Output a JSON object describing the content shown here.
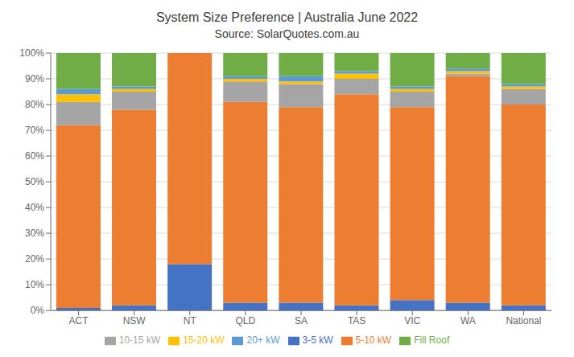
{
  "chart_data": {
    "type": "bar",
    "title": "System Size Preference  |  Australia June 2022",
    "subtitle": "Source: SolarQuotes.com.au",
    "categories": [
      "ACT",
      "NSW",
      "NT",
      "QLD",
      "SA",
      "TAS",
      "VIC",
      "WA",
      "National"
    ],
    "series": [
      {
        "name": "3-5 kW",
        "color": "#4472C4",
        "values": [
          1,
          2,
          18,
          3,
          3,
          2,
          4,
          3,
          2
        ]
      },
      {
        "name": "5-10 kW",
        "color": "#ED7D31",
        "values": [
          71,
          76,
          82,
          78,
          76,
          82,
          75,
          88,
          78
        ]
      },
      {
        "name": "10-15 kW",
        "color": "#A5A5A5",
        "values": [
          9,
          7,
          0,
          8,
          9,
          6,
          6,
          1,
          6
        ]
      },
      {
        "name": "15-20 kW",
        "color": "#FFC000",
        "values": [
          3,
          1,
          0,
          1,
          1,
          2,
          1,
          1,
          1
        ]
      },
      {
        "name": "20+ kW",
        "color": "#5B9BD5",
        "values": [
          2,
          1,
          0,
          1,
          2,
          1,
          1,
          1,
          1
        ]
      },
      {
        "name": "Fill Roof",
        "color": "#70AD47",
        "values": [
          14,
          13,
          0,
          9,
          9,
          7,
          13,
          6,
          12
        ]
      }
    ],
    "stacked": true,
    "ylim": [
      0,
      100
    ],
    "yticks": [
      {
        "value": 0,
        "label": "0%"
      },
      {
        "value": 10,
        "label": "10%"
      },
      {
        "value": 20,
        "label": "20%"
      },
      {
        "value": 30,
        "label": "30%"
      },
      {
        "value": 40,
        "label": "40%"
      },
      {
        "value": 50,
        "label": "50%"
      },
      {
        "value": 60,
        "label": "60%"
      },
      {
        "value": 70,
        "label": "70%"
      },
      {
        "value": 80,
        "label": "80%"
      },
      {
        "value": 90,
        "label": "90%"
      },
      {
        "value": 100,
        "label": "100%"
      }
    ],
    "grid": true,
    "legend": "bottom"
  }
}
